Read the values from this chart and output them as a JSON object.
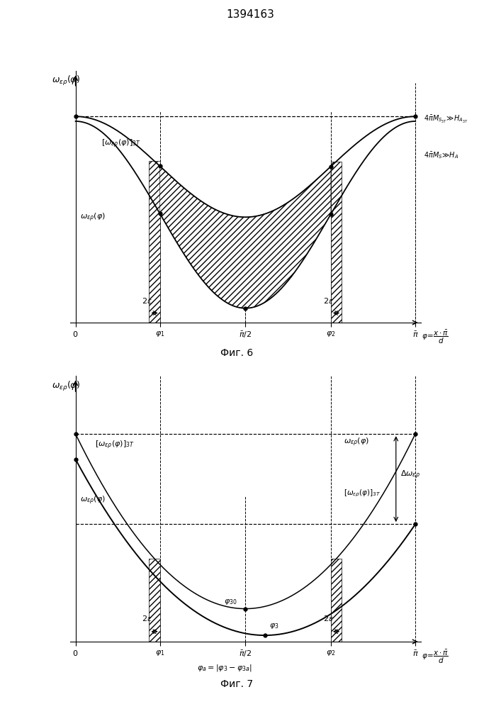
{
  "title": "1394163",
  "fig6_caption": "Фиг. 6",
  "fig7_caption": "Фиг. 7",
  "pi_val": 3.14159265,
  "phi1": 0.78,
  "phi2": 2.36,
  "eps": 0.09,
  "bar_width": 0.1,
  "phi3": 1.75,
  "phi30": 1.57
}
